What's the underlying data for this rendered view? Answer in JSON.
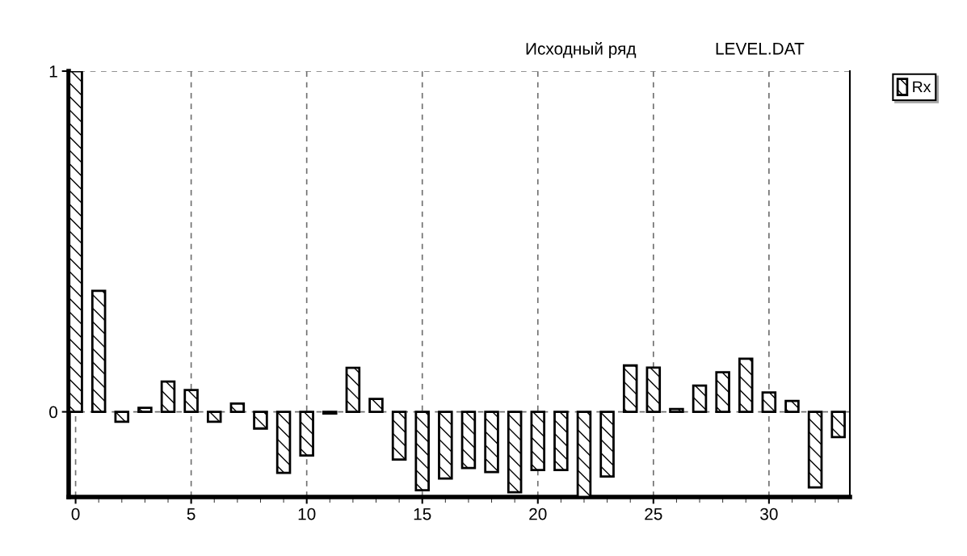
{
  "chart_data": {
    "type": "bar",
    "title": "Исходный ряд",
    "subtitle": "LEVEL.DAT",
    "x": [
      0,
      1,
      2,
      3,
      4,
      5,
      6,
      7,
      8,
      9,
      10,
      11,
      12,
      13,
      14,
      15,
      16,
      17,
      18,
      19,
      20,
      21,
      22,
      23,
      24,
      25,
      26,
      27,
      28,
      29,
      30,
      31,
      32,
      33
    ],
    "series": [
      {
        "name": "Rx",
        "color": "#000000",
        "values": [
          1.0,
          0.355,
          -0.029,
          0.012,
          0.089,
          0.064,
          -0.029,
          0.024,
          -0.049,
          -0.179,
          -0.128,
          -0.005,
          0.129,
          0.038,
          -0.14,
          -0.23,
          -0.196,
          -0.165,
          -0.177,
          -0.236,
          -0.171,
          -0.171,
          -0.25,
          -0.19,
          0.136,
          0.13,
          0.008,
          0.077,
          0.116,
          0.156,
          0.057,
          0.032,
          -0.222,
          -0.074
        ]
      }
    ],
    "xlim": [
      -0.3,
      33.5
    ],
    "xticks": [
      0,
      5,
      10,
      15,
      20,
      25,
      30
    ],
    "ylim": [
      -0.25,
      1.0
    ],
    "yticks": [
      0,
      1
    ],
    "grid": true,
    "legend": "top right"
  }
}
